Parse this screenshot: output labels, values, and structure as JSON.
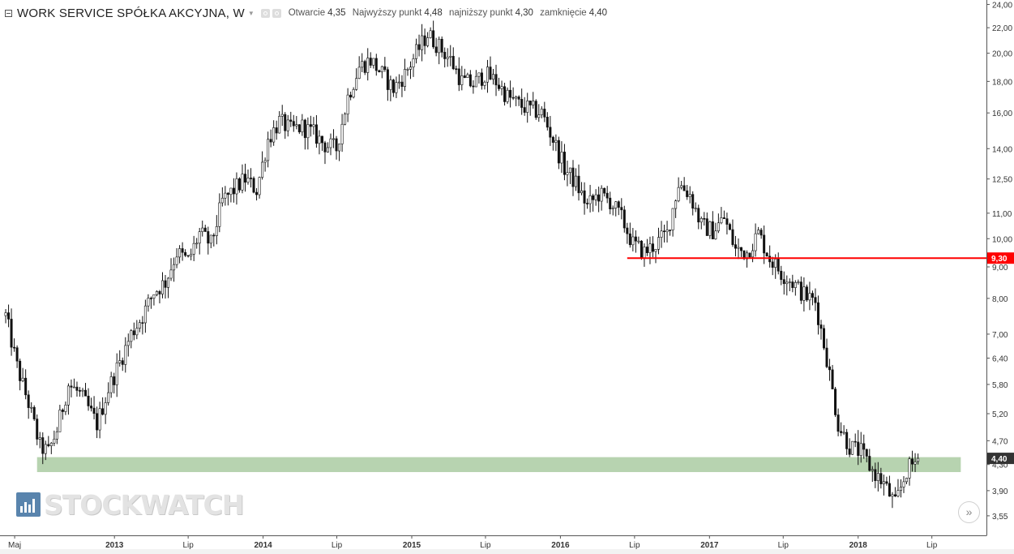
{
  "header": {
    "title": "WORK SERVICE SPÓŁKA AKCYJNA, W",
    "ohlc": [
      {
        "label": "Otwarcie",
        "value": "4,35"
      },
      {
        "label": "Najwyższy punkt",
        "value": "4,48"
      },
      {
        "label": "najniższy punkt",
        "value": "4,30"
      },
      {
        "label": "zamknięcie",
        "value": "4,40"
      }
    ]
  },
  "icons": {
    "collapse": "collapse-icon",
    "caret": "caret-down-icon",
    "settings": "settings-icon",
    "hide": "hide-icon",
    "scroll": "chevrons-right-icon",
    "watermark_logo": "bar-chart-logo-icon"
  },
  "watermark": {
    "text": "STOCKWATCH"
  },
  "scroll_button": {
    "label": "»"
  },
  "colors": {
    "candle": "#111111",
    "resistance": "#ff0000",
    "support_zone": "#b7d3b0",
    "current_price_bg": "#333333",
    "level_badge_bg": "#ff0000"
  },
  "chart_data": {
    "type": "candlestick",
    "y_scale": "log",
    "ylim": [
      3.3,
      24.4
    ],
    "xlim": [
      "2012-03-26",
      "2018-11-12"
    ],
    "y_ticks": [
      {
        "label": "24,00",
        "value": 24
      },
      {
        "label": "22,00",
        "value": 22
      },
      {
        "label": "20,00",
        "value": 20
      },
      {
        "label": "18,00",
        "value": 18
      },
      {
        "label": "16,00",
        "value": 16
      },
      {
        "label": "14,00",
        "value": 14
      },
      {
        "label": "12,50",
        "value": 12.5
      },
      {
        "label": "11,00",
        "value": 11
      },
      {
        "label": "10,00",
        "value": 10
      },
      {
        "label": "9,00",
        "value": 9
      },
      {
        "label": "8,00",
        "value": 8
      },
      {
        "label": "7,00",
        "value": 7
      },
      {
        "label": "6,40",
        "value": 6.4
      },
      {
        "label": "5,80",
        "value": 5.8
      },
      {
        "label": "5,20",
        "value": 5.2
      },
      {
        "label": "4,70",
        "value": 4.7
      },
      {
        "label": "4,30",
        "value": 4.3
      },
      {
        "label": "3,90",
        "value": 3.9
      },
      {
        "label": "3,55",
        "value": 3.55
      }
    ],
    "x_ticks": [
      {
        "label": "Maj",
        "date": "2012-05-01",
        "bold": false
      },
      {
        "label": "2013",
        "date": "2013-01-01",
        "bold": true
      },
      {
        "label": "Lip",
        "date": "2013-07-01",
        "bold": false
      },
      {
        "label": "2014",
        "date": "2014-01-01",
        "bold": true
      },
      {
        "label": "Lip",
        "date": "2014-07-01",
        "bold": false
      },
      {
        "label": "2015",
        "date": "2015-01-01",
        "bold": true
      },
      {
        "label": "Lip",
        "date": "2015-07-01",
        "bold": false
      },
      {
        "label": "2016",
        "date": "2016-01-01",
        "bold": true
      },
      {
        "label": "Lip",
        "date": "2016-07-01",
        "bold": false
      },
      {
        "label": "2017",
        "date": "2017-01-01",
        "bold": true
      },
      {
        "label": "Lip",
        "date": "2017-07-01",
        "bold": false
      },
      {
        "label": "2018",
        "date": "2018-01-01",
        "bold": true
      },
      {
        "label": "Lip",
        "date": "2018-07-01",
        "bold": false
      }
    ],
    "price_path": [
      [
        "2012-04-09",
        7.5
      ],
      [
        "2012-05-07",
        6.2
      ],
      [
        "2012-06-04",
        5.4
      ],
      [
        "2012-07-02",
        4.6
      ],
      [
        "2012-07-23",
        4.5
      ],
      [
        "2012-08-13",
        4.9
      ],
      [
        "2012-09-10",
        5.8
      ],
      [
        "2012-10-08",
        5.6
      ],
      [
        "2012-10-29",
        5.3
      ],
      [
        "2012-11-19",
        5.0
      ],
      [
        "2012-12-17",
        5.7
      ],
      [
        "2013-01-14",
        6.3
      ],
      [
        "2013-02-11",
        7.0
      ],
      [
        "2013-03-11",
        7.5
      ],
      [
        "2013-04-08",
        8.2
      ],
      [
        "2013-05-06",
        8.5
      ],
      [
        "2013-06-03",
        9.5
      ],
      [
        "2013-07-01",
        9.2
      ],
      [
        "2013-07-29",
        10.2
      ],
      [
        "2013-08-26",
        9.8
      ],
      [
        "2013-09-23",
        11.5
      ],
      [
        "2013-10-21",
        12.0
      ],
      [
        "2013-11-18",
        12.5
      ],
      [
        "2013-12-16",
        12.0
      ],
      [
        "2014-01-13",
        14.5
      ],
      [
        "2014-02-10",
        15.5
      ],
      [
        "2014-03-10",
        15.0
      ],
      [
        "2014-04-07",
        15.2
      ],
      [
        "2014-05-05",
        14.8
      ],
      [
        "2014-06-02",
        14.2
      ],
      [
        "2014-06-30",
        14.0
      ],
      [
        "2014-07-28",
        17.0
      ],
      [
        "2014-08-25",
        19.0
      ],
      [
        "2014-09-22",
        19.5
      ],
      [
        "2014-10-20",
        18.5
      ],
      [
        "2014-11-17",
        17.5
      ],
      [
        "2014-12-15",
        18.5
      ],
      [
        "2015-01-12",
        20.0
      ],
      [
        "2015-02-09",
        21.5
      ],
      [
        "2015-03-09",
        20.5
      ],
      [
        "2015-04-06",
        19.5
      ],
      [
        "2015-05-04",
        18.0
      ],
      [
        "2015-06-01",
        17.8
      ],
      [
        "2015-06-29",
        18.5
      ],
      [
        "2015-07-27",
        18.0
      ],
      [
        "2015-08-24",
        17.0
      ],
      [
        "2015-09-21",
        16.5
      ],
      [
        "2015-10-19",
        16.2
      ],
      [
        "2015-11-16",
        16.0
      ],
      [
        "2015-12-14",
        14.5
      ],
      [
        "2016-01-11",
        13.0
      ],
      [
        "2016-02-08",
        12.3
      ],
      [
        "2016-03-07",
        11.3
      ],
      [
        "2016-04-04",
        11.8
      ],
      [
        "2016-05-02",
        11.5
      ],
      [
        "2016-05-30",
        10.8
      ],
      [
        "2016-06-27",
        9.8
      ],
      [
        "2016-07-25",
        9.5
      ],
      [
        "2016-08-22",
        9.8
      ],
      [
        "2016-09-19",
        10.2
      ],
      [
        "2016-10-17",
        12.3
      ],
      [
        "2016-11-14",
        11.8
      ],
      [
        "2016-12-12",
        10.5
      ],
      [
        "2017-01-09",
        10.3
      ],
      [
        "2017-02-06",
        10.8
      ],
      [
        "2017-03-06",
        9.6
      ],
      [
        "2017-04-03",
        9.5
      ],
      [
        "2017-05-01",
        10.2
      ],
      [
        "2017-05-29",
        9.3
      ],
      [
        "2017-06-26",
        8.8
      ],
      [
        "2017-07-24",
        8.5
      ],
      [
        "2017-08-21",
        8.1
      ],
      [
        "2017-09-18",
        7.9
      ],
      [
        "2017-10-16",
        6.4
      ],
      [
        "2017-11-13",
        5.0
      ],
      [
        "2017-12-11",
        4.6
      ],
      [
        "2018-01-08",
        4.5
      ],
      [
        "2018-02-05",
        4.2
      ],
      [
        "2018-03-05",
        4.0
      ],
      [
        "2018-04-02",
        3.7
      ],
      [
        "2018-04-30",
        4.2
      ],
      [
        "2018-05-28",
        4.4
      ]
    ],
    "last_candle": {
      "date": "2018-05-28",
      "open": 4.35,
      "high": 4.48,
      "low": 4.3,
      "close": 4.4
    },
    "resistance_line": {
      "value": 9.3,
      "label": "9,30",
      "from": "2016-06-13",
      "color": "#ff0000"
    },
    "current_price": {
      "value": 4.4,
      "label": "4,40"
    },
    "support_zone": {
      "low": 4.18,
      "high": 4.42,
      "from": "2012-06-25",
      "to": "2018-09-10"
    },
    "grid": false,
    "legend": "top-left"
  }
}
